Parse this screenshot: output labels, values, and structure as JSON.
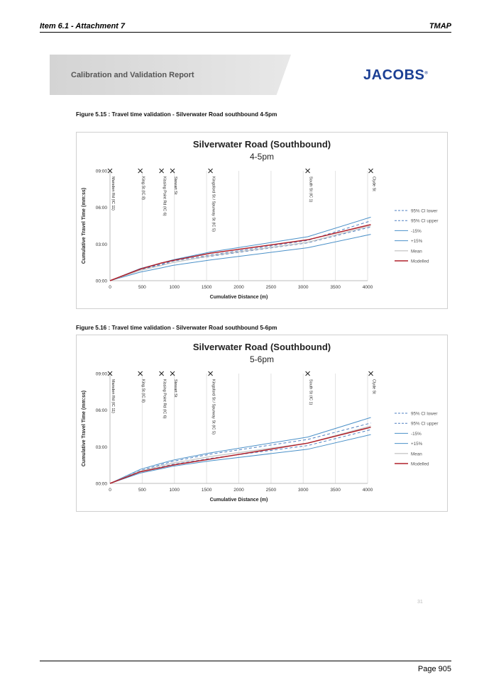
{
  "header": {
    "left": "Item 6.1 - Attachment 7",
    "right": "TMAP"
  },
  "banner": {
    "title": "Calibration and Validation Report",
    "logo": "JACOBS",
    "logo_mark": "®"
  },
  "figures": [
    {
      "caption": "Figure 5.15 : Travel time validation - Silverwater Road southbound 4-5pm",
      "title": "Silverwater Road (Southbound)",
      "subtitle": "4-5pm"
    },
    {
      "caption": "Figure 5.16 : Travel time validation - Silverwater Road southbound 5-6pm",
      "title": "Silverwater Road (Southbound)",
      "subtitle": "5-6pm"
    }
  ],
  "chart_data": [
    {
      "type": "line",
      "title": "Silverwater Road (Southbound)",
      "subtitle": "4-5pm",
      "xlabel": "Cumulative Distance (m)",
      "ylabel": "Cumulative Travel Time (mm:ss)",
      "xlim": [
        0,
        4000
      ],
      "x_ticks": [
        0,
        500,
        1000,
        1500,
        2000,
        2500,
        3000,
        3500,
        4000
      ],
      "ylim": [
        0,
        9
      ],
      "y_ticks": [
        {
          "value": 0,
          "label": "00:00"
        },
        {
          "value": 3,
          "label": "03:00"
        },
        {
          "value": 6,
          "label": "06:00"
        },
        {
          "value": 9,
          "label": "09:00"
        }
      ],
      "grid": "vertical",
      "legend": "right",
      "intersections": [
        {
          "name": "Marsden Rd (IC 11)",
          "x": 0
        },
        {
          "name": "King St (IC 8)",
          "x": 470
        },
        {
          "name": "Kissing Point Rd (IC 6)",
          "x": 800
        },
        {
          "name": "Stewart St",
          "x": 970
        },
        {
          "name": "Kingsford St / Spurway St (IC 5)",
          "x": 1560
        },
        {
          "name": "South St (IC 1)",
          "x": 3070
        },
        {
          "name": "Clyde St",
          "x": 4050
        }
      ],
      "x": [
        0,
        470,
        800,
        970,
        1560,
        3070,
        4050
      ],
      "series": [
        {
          "name": "95% CI lower",
          "color": "#4f7fc0",
          "dash": "4,3",
          "width": 1,
          "values": [
            0,
            0.9,
            1.3,
            1.5,
            2.0,
            3.1,
            4.4
          ]
        },
        {
          "name": "95% CI upper",
          "color": "#4f7fc0",
          "dash": "4,3",
          "width": 1,
          "values": [
            0,
            0.95,
            1.35,
            1.6,
            2.1,
            3.3,
            4.9
          ]
        },
        {
          "name": "-15%",
          "color": "#4a90c8",
          "dash": "",
          "width": 1,
          "values": [
            0,
            0.7,
            1.05,
            1.25,
            1.7,
            2.7,
            3.8
          ]
        },
        {
          "name": "+15%",
          "color": "#4a90c8",
          "dash": "",
          "width": 1,
          "values": [
            0,
            1.0,
            1.45,
            1.7,
            2.35,
            3.6,
            5.2
          ]
        },
        {
          "name": "Mean",
          "color": "#c8c8c8",
          "dash": "",
          "width": 1.4,
          "values": [
            0,
            0.85,
            1.25,
            1.48,
            2.05,
            3.15,
            4.5
          ]
        },
        {
          "name": "Modelled",
          "color": "#b0202a",
          "dash": "",
          "width": 1.5,
          "values": [
            0,
            0.95,
            1.45,
            1.65,
            2.25,
            3.35,
            4.6
          ]
        }
      ]
    },
    {
      "type": "line",
      "title": "Silverwater Road (Southbound)",
      "subtitle": "5-6pm",
      "xlabel": "Cumulative Distance (m)",
      "ylabel": "Cumulative Travel Time (mm:ss)",
      "xlim": [
        0,
        4000
      ],
      "x_ticks": [
        0,
        500,
        1000,
        1500,
        2000,
        2500,
        3000,
        3500,
        4000
      ],
      "ylim": [
        0,
        9
      ],
      "y_ticks": [
        {
          "value": 0,
          "label": "00:00"
        },
        {
          "value": 3,
          "label": "03:00"
        },
        {
          "value": 6,
          "label": "06:00"
        },
        {
          "value": 9,
          "label": "09:00"
        }
      ],
      "grid": "vertical",
      "legend": "right",
      "intersections": [
        {
          "name": "Marsden Rd (IC 11)",
          "x": 0
        },
        {
          "name": "King St (IC 8)",
          "x": 470
        },
        {
          "name": "Kissing Point Rd (IC 6)",
          "x": 800
        },
        {
          "name": "Stewart St",
          "x": 970
        },
        {
          "name": "Kingsford St / Spurway St (IC 5)",
          "x": 1560
        },
        {
          "name": "South St (IC 1)",
          "x": 3070
        },
        {
          "name": "Clyde St",
          "x": 4050
        }
      ],
      "x": [
        0,
        470,
        800,
        970,
        1560,
        3070,
        4050
      ],
      "series": [
        {
          "name": "95% CI lower",
          "color": "#4f7fc0",
          "dash": "4,3",
          "width": 1,
          "values": [
            0,
            0.95,
            1.35,
            1.55,
            2.05,
            3.1,
            4.4
          ]
        },
        {
          "name": "95% CI upper",
          "color": "#4f7fc0",
          "dash": "4,3",
          "width": 1,
          "values": [
            0,
            1.05,
            1.55,
            1.8,
            2.4,
            3.6,
            4.95
          ]
        },
        {
          "name": "-15%",
          "color": "#4a90c8",
          "dash": "",
          "width": 1,
          "values": [
            0,
            0.85,
            1.2,
            1.4,
            1.85,
            2.8,
            4.0
          ]
        },
        {
          "name": "+15%",
          "color": "#4a90c8",
          "dash": "",
          "width": 1,
          "values": [
            0,
            1.15,
            1.65,
            1.9,
            2.5,
            3.8,
            5.4
          ]
        },
        {
          "name": "Mean",
          "color": "#c8c8c8",
          "dash": "",
          "width": 1.4,
          "values": [
            0,
            1.0,
            1.45,
            1.65,
            2.2,
            3.3,
            4.7
          ]
        },
        {
          "name": "Modelled",
          "color": "#b0202a",
          "dash": "",
          "width": 1.5,
          "values": [
            0,
            0.95,
            1.3,
            1.5,
            2.0,
            3.3,
            4.6
          ]
        }
      ]
    }
  ],
  "footer": {
    "stamp": "31",
    "page": "Page 905"
  }
}
